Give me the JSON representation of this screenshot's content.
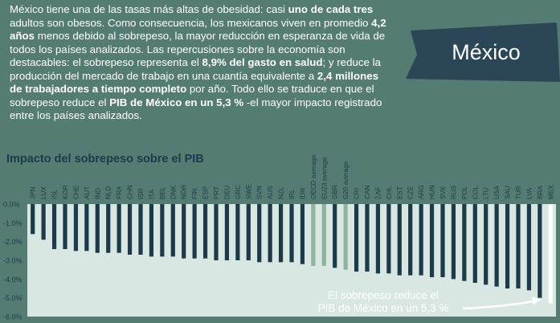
{
  "intro": {
    "segments": [
      {
        "text": "México tiene una de las tasas más altas de obesidad: casi ",
        "hl": false
      },
      {
        "text": "uno de cada tres",
        "hl": true
      },
      {
        "text": " adultos son obesos. Como consecuencia, los mexicanos viven en promedio ",
        "hl": false
      },
      {
        "text": "4,2 años",
        "hl": true
      },
      {
        "text": " menos debido al sobrepeso, la mayor reducción en esperanza de vida de todos los países analizados. Las repercusiones sobre la economía son destacables: el sobrepeso representa el ",
        "hl": false
      },
      {
        "text": "8,9% del gasto en salud",
        "hl": true
      },
      {
        "text": "; y reduce la producción del mercado de trabajo en una cuantía equivalente a ",
        "hl": false
      },
      {
        "text": "2,4 millones de trabajadores a tiempo completo",
        "hl": true
      },
      {
        "text": " por año. Todo ello se traduce en que el sobrepeso reduce el ",
        "hl": false
      },
      {
        "text": "PIB de México en un 5,3 %",
        "hl": true
      },
      {
        "text": " -el mayor impacto registrado entre los países analizados.",
        "hl": false
      }
    ]
  },
  "banner": {
    "title": "México"
  },
  "chart_title": "Impacto del sobrepeso sobre el PIB",
  "chart_data": {
    "type": "bar",
    "title": "Impacto del sobrepeso sobre el PIB",
    "ylim": [
      -6,
      0
    ],
    "yticks": [
      "0.0%",
      "-1.0%",
      "-2.0%",
      "-3.0%",
      "-4.0%",
      "-5.0%",
      "-6.0%"
    ],
    "categories": [
      "JPN",
      "LUX",
      "ISL",
      "KOR",
      "CHE",
      "AUT",
      "IND",
      "NLD",
      "FRA",
      "CHN",
      "ISR",
      "ITA",
      "BEL",
      "DNK",
      "NOR",
      "FIN",
      "ESP",
      "PRT",
      "DEU",
      "GRC",
      "SWE",
      "SVN",
      "AUS",
      "NZL",
      "IRL",
      "IDN",
      "OECD average",
      "EU23 average",
      "GBR",
      "G20 average",
      "CRI",
      "CAN",
      "ZAF",
      "CHL",
      "EST",
      "CZE",
      "ARG",
      "HUN",
      "SVK",
      "RUS",
      "POL",
      "COL",
      "LTU",
      "USA",
      "SAU",
      "TUR",
      "LVA",
      "BRA",
      "MEX"
    ],
    "values": [
      -1.6,
      -1.9,
      -2.4,
      -2.4,
      -2.5,
      -2.5,
      -2.6,
      -2.6,
      -2.6,
      -2.7,
      -2.7,
      -2.8,
      -2.8,
      -2.8,
      -2.9,
      -2.9,
      -2.9,
      -3.0,
      -3.0,
      -3.0,
      -3.0,
      -3.1,
      -3.1,
      -3.1,
      -3.1,
      -3.2,
      -3.3,
      -3.3,
      -3.4,
      -3.5,
      -3.6,
      -3.6,
      -3.7,
      -3.7,
      -3.8,
      -3.8,
      -3.8,
      -3.9,
      -3.9,
      -4.0,
      -4.1,
      -4.2,
      -4.3,
      -4.4,
      -4.5,
      -4.5,
      -4.6,
      -5.0,
      -5.3
    ],
    "highlighted": [
      "OECD average",
      "EU23 average",
      "G20 average"
    ],
    "emphasized": [
      "MEX"
    ],
    "annotation": {
      "line1": "El sobrepeso reduce el",
      "line2": "PIB de México en un 5,3 %"
    },
    "colors": {
      "bar": "#1d3a4a",
      "average": "#8eb4a0",
      "mex": "#ffffff",
      "axis_text": "#1d3a4a",
      "plot_bg": "#d9e7e3",
      "annotation_text": "#ffffff"
    }
  }
}
